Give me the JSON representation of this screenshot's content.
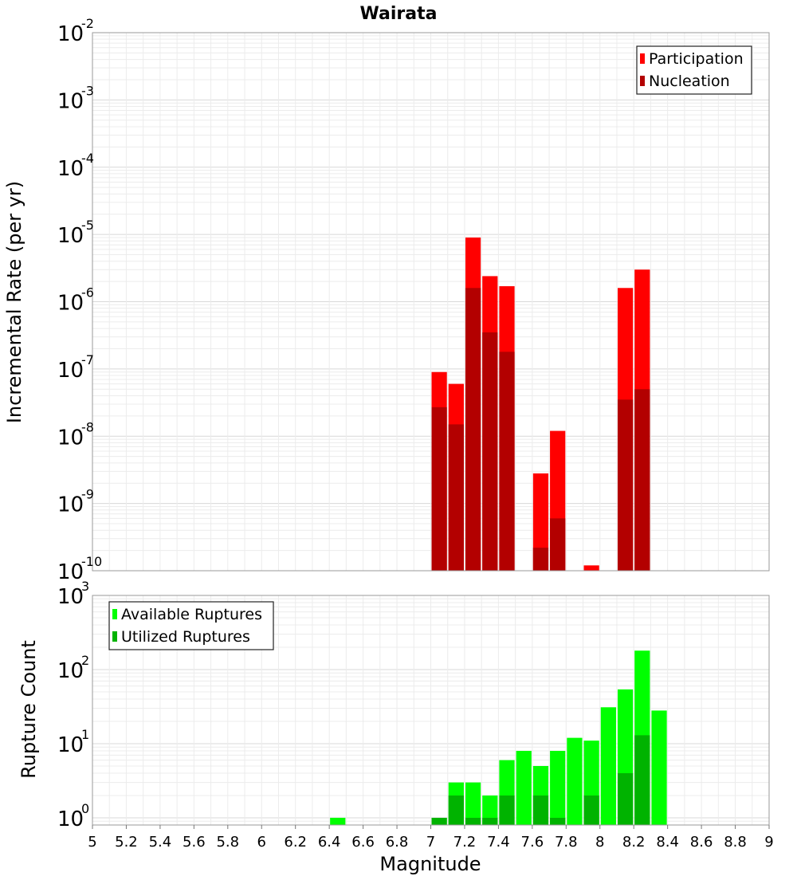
{
  "chart_data": [
    {
      "type": "bar",
      "title": "Wairata",
      "xlabel": "",
      "ylabel": "Incremental Rate (per yr)",
      "yscale": "log",
      "ylim": [
        1e-10,
        0.01
      ],
      "xlim": [
        5,
        9
      ],
      "grid": true,
      "legend_position": "top-right",
      "series": [
        {
          "name": "Participation",
          "color": "#ff0000",
          "x": [
            7.05,
            7.15,
            7.25,
            7.35,
            7.45,
            7.65,
            7.75,
            7.95,
            8.15,
            8.25
          ],
          "values": [
            9e-08,
            6e-08,
            9e-06,
            2.4e-06,
            1.7e-06,
            2.8e-09,
            1.2e-08,
            1.2e-10,
            1.6e-06,
            3e-06
          ]
        },
        {
          "name": "Nucleation",
          "color": "#b30000",
          "x": [
            7.05,
            7.15,
            7.25,
            7.35,
            7.45,
            7.65,
            7.75,
            8.15,
            8.25
          ],
          "values": [
            2.7e-08,
            1.5e-08,
            1.6e-06,
            3.5e-07,
            1.8e-07,
            2.2e-10,
            6e-10,
            3.5e-08,
            5e-08
          ]
        }
      ]
    },
    {
      "type": "bar",
      "title": "",
      "xlabel": "Magnitude",
      "ylabel": "Rupture Count",
      "yscale": "log",
      "ylim": [
        0.8,
        1000
      ],
      "xlim": [
        5,
        9
      ],
      "xticks": [
        "5",
        "5.2",
        "5.4",
        "5.6",
        "5.8",
        "6",
        "6.2",
        "6.4",
        "6.6",
        "6.8",
        "7",
        "7.2",
        "7.4",
        "7.6",
        "7.8",
        "8",
        "8.2",
        "8.4",
        "8.6",
        "8.8",
        "9"
      ],
      "grid": true,
      "legend_position": "top-left",
      "series": [
        {
          "name": "Available Ruptures",
          "color": "#00ff00",
          "x": [
            6.45,
            7.05,
            7.15,
            7.25,
            7.35,
            7.45,
            7.55,
            7.65,
            7.75,
            7.85,
            7.95,
            8.05,
            8.15,
            8.25,
            8.35
          ],
          "values": [
            1,
            1,
            3,
            3,
            2,
            6,
            8,
            5,
            8,
            12,
            11,
            31,
            54,
            180,
            28
          ]
        },
        {
          "name": "Utilized Ruptures",
          "color": "#00b300",
          "x": [
            7.05,
            7.15,
            7.25,
            7.35,
            7.45,
            7.65,
            7.75,
            7.95,
            8.15,
            8.25
          ],
          "values": [
            1,
            2,
            1,
            1,
            2,
            2,
            1,
            2,
            4,
            13
          ]
        }
      ]
    }
  ],
  "tick_labels": {
    "x": [
      "5",
      "5.2",
      "5.4",
      "5.6",
      "5.8",
      "6",
      "6.2",
      "6.4",
      "6.6",
      "6.8",
      "7",
      "7.2",
      "7.4",
      "7.6",
      "7.8",
      "8",
      "8.2",
      "8.4",
      "8.6",
      "8.8",
      "9"
    ],
    "top_y_base": "10",
    "top_y_exponents": [
      "-2",
      "-3",
      "-4",
      "-5",
      "-6",
      "-7",
      "-8",
      "-9",
      "-10"
    ],
    "bottom_y_base": "10",
    "bottom_y_exponents": [
      "3",
      "2",
      "1",
      "0"
    ]
  }
}
